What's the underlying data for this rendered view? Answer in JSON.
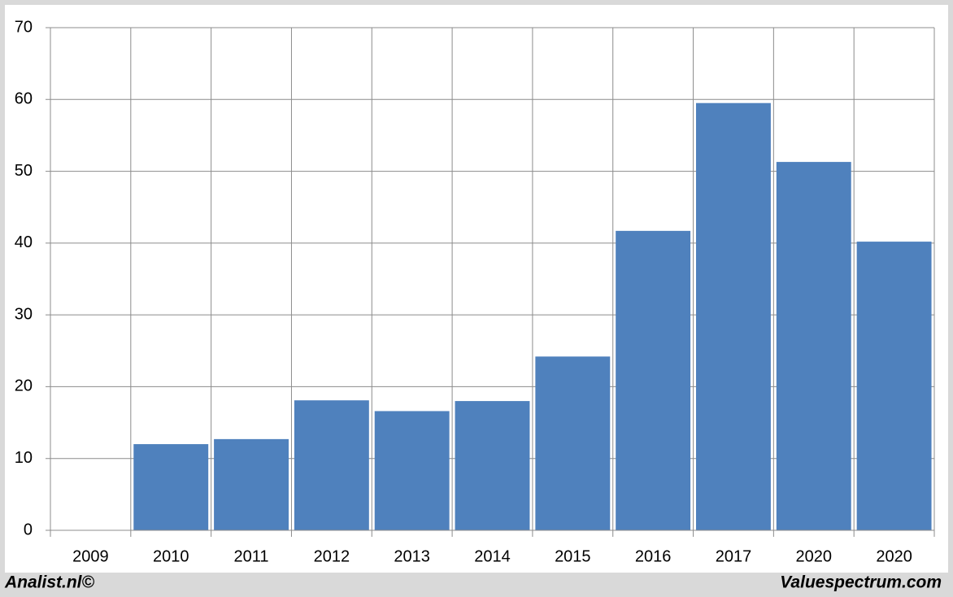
{
  "chart_data": {
    "type": "bar",
    "categories": [
      "2009",
      "2010",
      "2011",
      "2012",
      "2013",
      "2014",
      "2015",
      "2016",
      "2017",
      "2020",
      "2020"
    ],
    "values": [
      0,
      12.0,
      12.7,
      18.1,
      16.6,
      18.0,
      24.2,
      41.7,
      59.5,
      51.3,
      40.2
    ],
    "color": "#4f81bd",
    "ylim": [
      0,
      70
    ],
    "yticks": [
      0,
      10,
      20,
      30,
      40,
      50,
      60,
      70
    ],
    "grid": true,
    "annotations": [
      "Analist.nl©",
      "Valuespectrum.com"
    ]
  }
}
